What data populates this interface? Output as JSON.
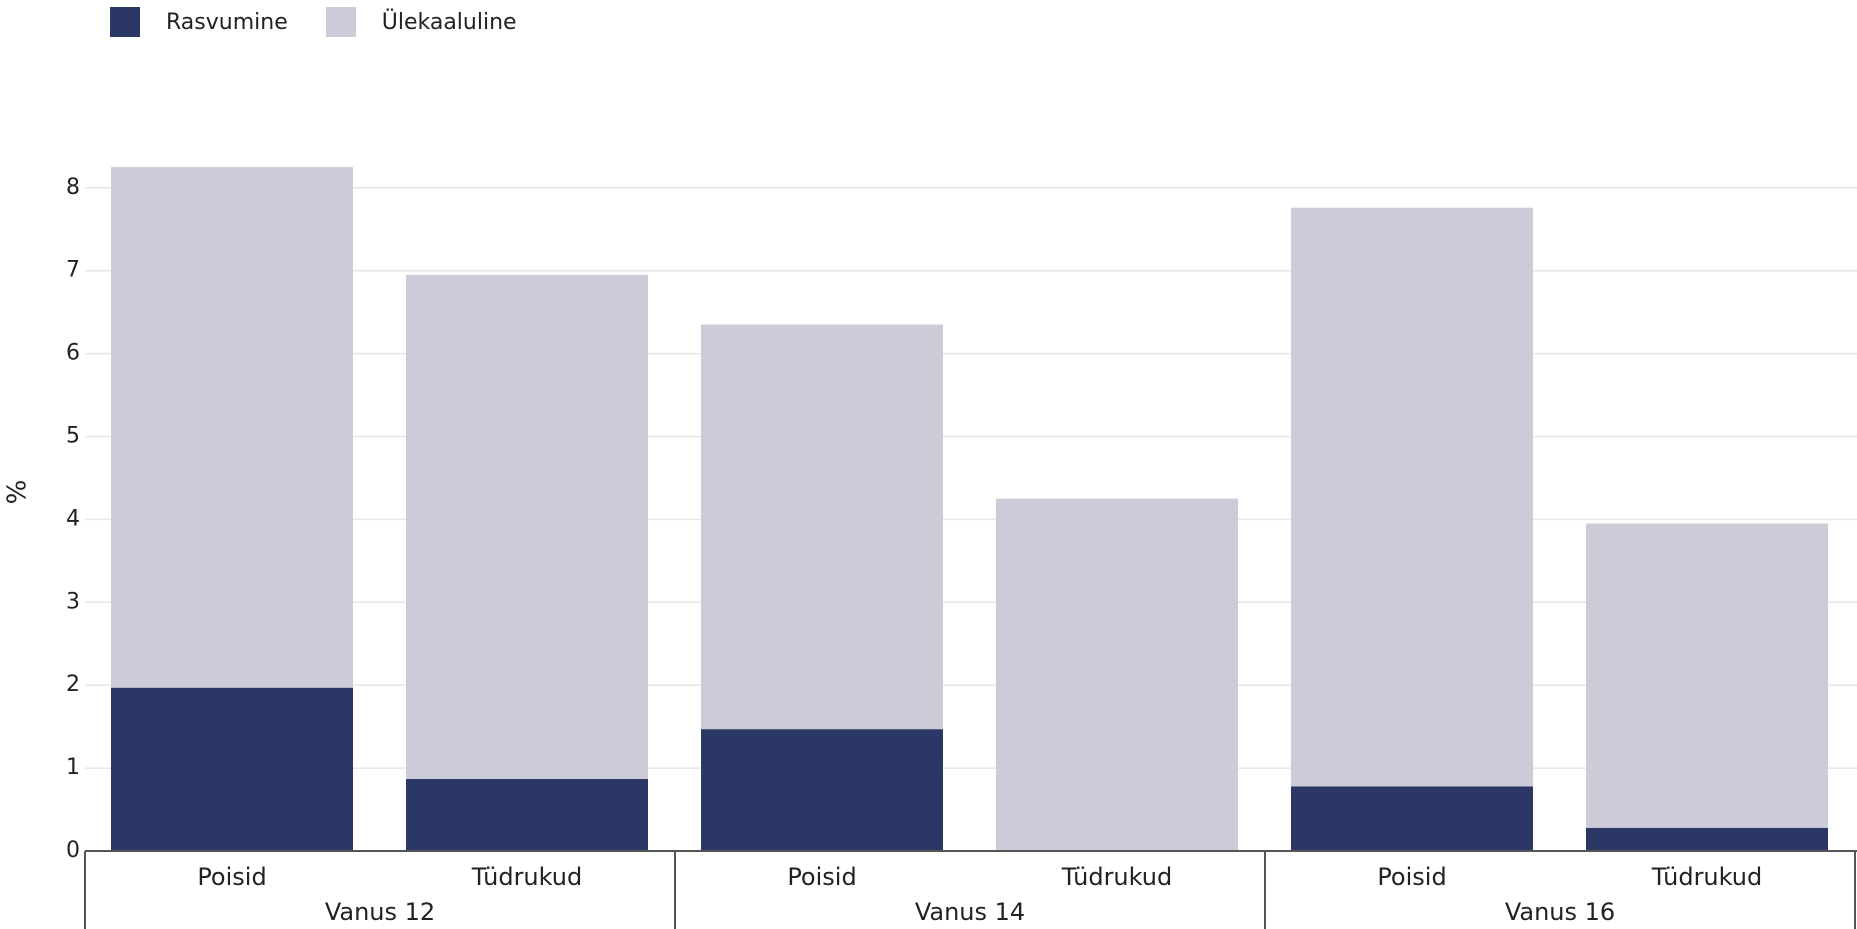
{
  "chart_data": {
    "type": "bar",
    "stacked": true,
    "ylabel": "%",
    "ylim": [
      0,
      8.5
    ],
    "yticks": [
      0,
      1,
      2,
      3,
      4,
      5,
      6,
      7,
      8
    ],
    "grid": true,
    "legend_position": "top-left",
    "groups": [
      {
        "label": "Vanus 12",
        "categories": [
          "Poisid",
          "Tüdrukud"
        ]
      },
      {
        "label": "Vanus 14",
        "categories": [
          "Poisid",
          "Tüdrukud"
        ]
      },
      {
        "label": "Vanus 16",
        "categories": [
          "Poisid",
          "Tüdrukud"
        ]
      }
    ],
    "series": [
      {
        "name": "Rasvumine",
        "color": "#2b3764",
        "values": [
          1.97,
          0.87,
          1.47,
          0.0,
          0.78,
          0.28
        ]
      },
      {
        "name": "Ülekaaluline",
        "color": "#cbccd8",
        "values": [
          6.28,
          6.08,
          4.88,
          4.25,
          6.98,
          3.67
        ]
      }
    ]
  }
}
